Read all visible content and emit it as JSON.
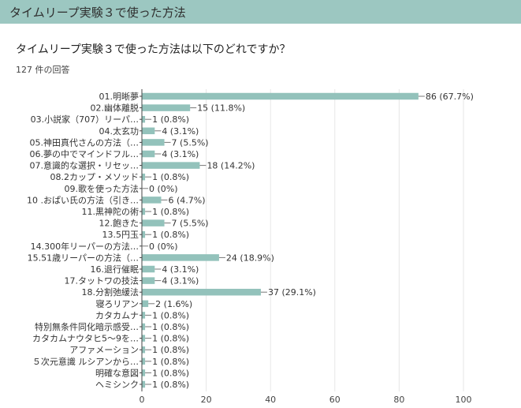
{
  "header": {
    "title": "タイムリープ実験３で使った方法"
  },
  "question": {
    "text": "タイムリープ実験３で使った方法は以下のどれですか？"
  },
  "responses": {
    "text": "127 件の回答"
  },
  "colors": {
    "header_bg": "#9cc7c1",
    "bar": "#93c2bb",
    "axis": "#444444",
    "grid": "#e6e6e6"
  },
  "chart_data": {
    "type": "bar",
    "orientation": "horizontal",
    "title": "タイムリープ実験３で使った方法は以下のどれですか？",
    "xlim": [
      0,
      100
    ],
    "xticks": [
      0,
      20,
      40,
      60,
      80,
      100
    ],
    "categories": [
      "01.明晰夢",
      "02.幽体離脱",
      "03.小説家（707）リーパ…",
      "04.太玄功",
      "05.神田真代さんの方法（…",
      "06.夢の中でマインドフル…",
      "07.意識的な選択・リセッ…",
      "08.2カップ・メソッド",
      "09.歌を使った方法",
      "10 .おぱい氏の方法（引き…",
      "11.黒神陀の術",
      "12.飽きた",
      "13.5円玉",
      "14.300年リーパーの方法…",
      "15.51歳リーパーの方法（…",
      "16.退行催眠",
      "17.タットワの技法",
      "18.分割弛緩法",
      "寝ろリアン",
      "カタカムナ",
      "特別無条件同化暗示感受…",
      "カタカムナウタヒ5～9を…",
      "アファメーション",
      "５次元意識 ルシアンから…",
      "明確な意図",
      "ヘミシンク"
    ],
    "values": [
      86,
      15,
      1,
      4,
      7,
      4,
      18,
      1,
      0,
      6,
      1,
      7,
      1,
      0,
      24,
      4,
      4,
      37,
      2,
      1,
      1,
      1,
      1,
      1,
      1,
      1
    ],
    "value_labels": [
      "86 (67.7%)",
      "15 (11.8%)",
      "1 (0.8%)",
      "4 (3.1%)",
      "7 (5.5%)",
      "4 (3.1%)",
      "18 (14.2%)",
      "1 (0.8%)",
      "0 (0%)",
      "6 (4.7%)",
      "1 (0.8%)",
      "7 (5.5%)",
      "1 (0.8%)",
      "0 (0%)",
      "24 (18.9%)",
      "4 (3.1%)",
      "4 (3.1%)",
      "37 (29.1%)",
      "2 (1.6%)",
      "1 (0.8%)",
      "1 (0.8%)",
      "1 (0.8%)",
      "1 (0.8%)",
      "1 (0.8%)",
      "1 (0.8%)",
      "1 (0.8%)"
    ]
  }
}
